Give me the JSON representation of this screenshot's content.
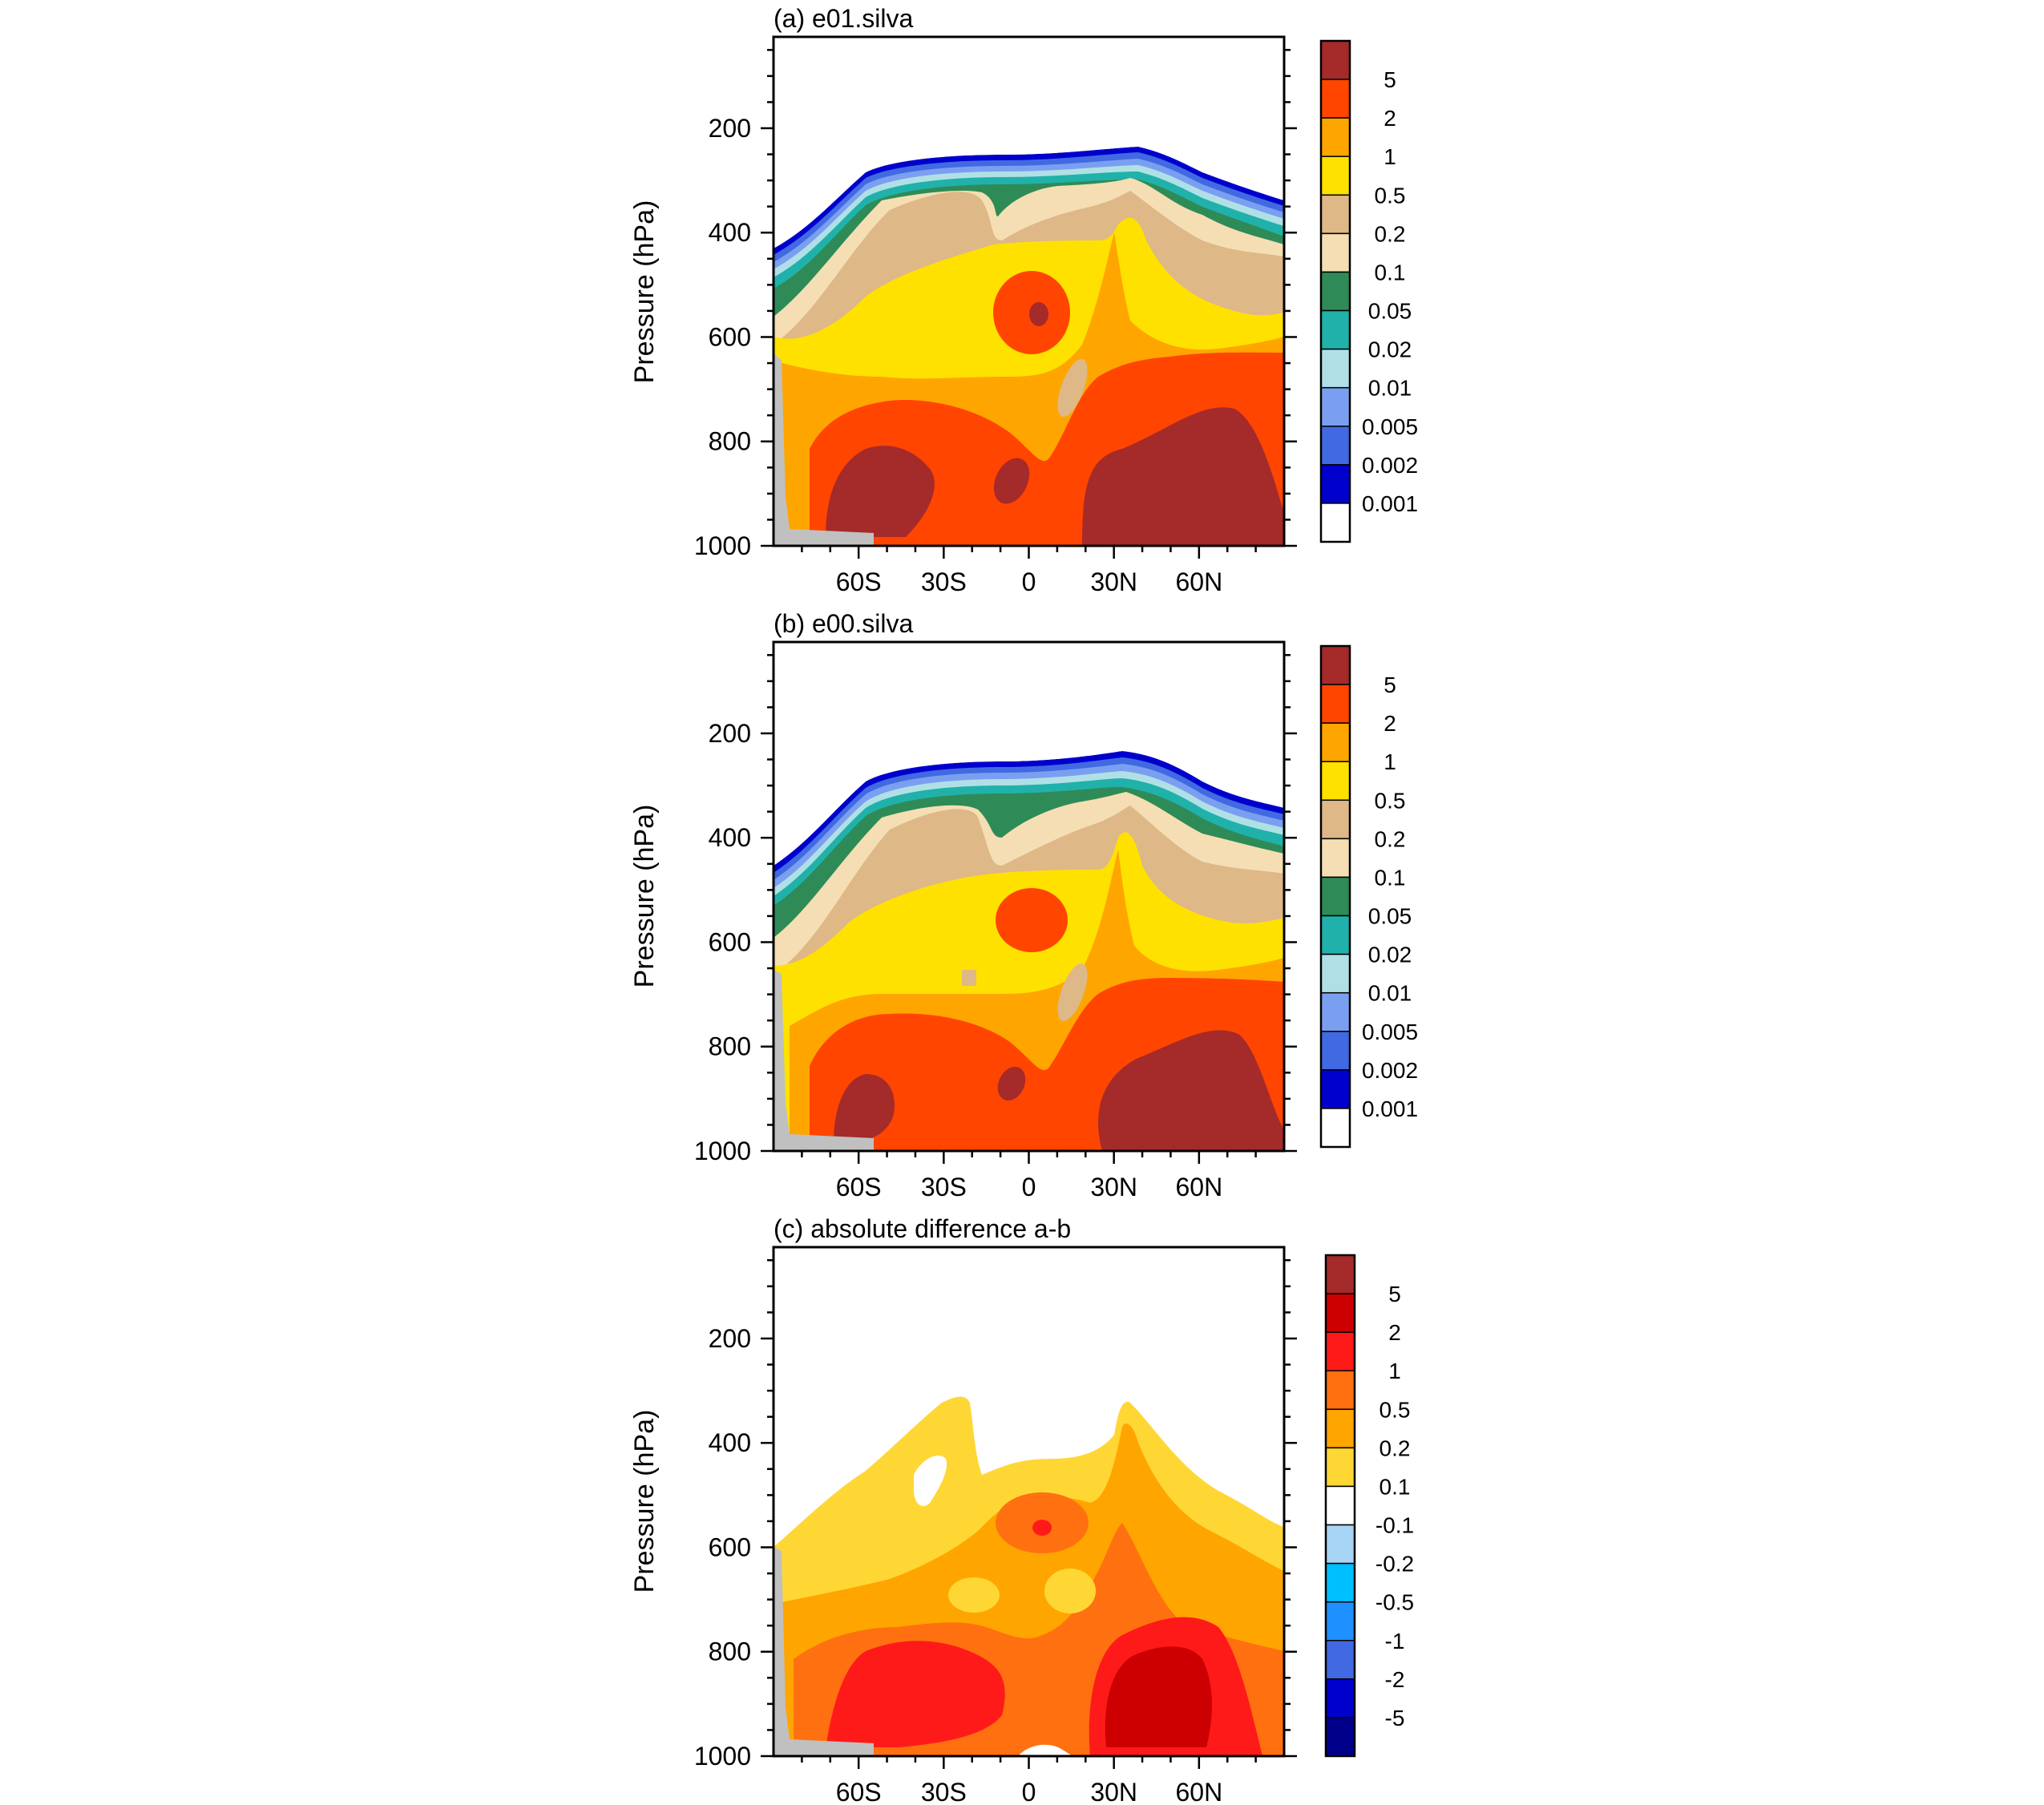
{
  "chart_data": [
    {
      "type": "heatmap",
      "title": "(a) e01.silva",
      "ylabel": "Pressure (hPa)",
      "x_tick_labels": [
        "60S",
        "30S",
        "0",
        "30N",
        "60N"
      ],
      "x_tick_values": [
        -60,
        -30,
        0,
        30,
        60
      ],
      "xlim": [
        -90,
        90
      ],
      "y_tick_labels": [
        "200",
        "400",
        "600",
        "800",
        "1000"
      ],
      "y_tick_values": [
        200,
        400,
        600,
        800,
        1000
      ],
      "ylim": [
        25,
        1000
      ],
      "colorbar_labels": [
        "5",
        "2",
        "1",
        "0.5",
        "0.2",
        "0.1",
        "0.05",
        "0.02",
        "0.01",
        "0.005",
        "0.002",
        "0.001"
      ],
      "colorbar_colors": [
        "#a52a2a",
        "#ff4500",
        "#ffa500",
        "#ffe100",
        "#deb887",
        "#f5deb3",
        "#2e8b57",
        "#20b2aa",
        "#b0e0e6",
        "#7b9ff0",
        "#4169e1",
        "#0000cd",
        "#ffffff"
      ],
      "sample_field": [
        {
          "lat": -30,
          "p": 330,
          "value": 0.2
        },
        {
          "lat": 0,
          "p": 560,
          "value": 5
        },
        {
          "lat": 20,
          "p": 650,
          "value": 0.2
        },
        {
          "lat": 50,
          "p": 850,
          "value": 5
        },
        {
          "lat": -50,
          "p": 900,
          "value": 5
        }
      ]
    },
    {
      "type": "heatmap",
      "title": "(b) e00.silva",
      "ylabel": "Pressure (hPa)",
      "x_tick_labels": [
        "60S",
        "30S",
        "0",
        "30N",
        "60N"
      ],
      "x_tick_values": [
        -60,
        -30,
        0,
        30,
        60
      ],
      "xlim": [
        -90,
        90
      ],
      "y_tick_labels": [
        "200",
        "400",
        "600",
        "800",
        "1000"
      ],
      "y_tick_values": [
        200,
        400,
        600,
        800,
        1000
      ],
      "ylim": [
        25,
        1000
      ],
      "colorbar_labels": [
        "5",
        "2",
        "1",
        "0.5",
        "0.2",
        "0.1",
        "0.05",
        "0.02",
        "0.01",
        "0.005",
        "0.002",
        "0.001"
      ],
      "colorbar_colors": [
        "#a52a2a",
        "#ff4500",
        "#ffa500",
        "#ffe100",
        "#deb887",
        "#f5deb3",
        "#2e8b57",
        "#20b2aa",
        "#b0e0e6",
        "#7b9ff0",
        "#4169e1",
        "#0000cd",
        "#ffffff"
      ],
      "sample_field": [
        {
          "lat": -30,
          "p": 330,
          "value": 0.2
        },
        {
          "lat": 0,
          "p": 560,
          "value": 2
        },
        {
          "lat": 20,
          "p": 650,
          "value": 0.2
        },
        {
          "lat": 50,
          "p": 850,
          "value": 5
        },
        {
          "lat": -50,
          "p": 900,
          "value": 5
        }
      ]
    },
    {
      "type": "heatmap",
      "title": "(c) absolute difference a-b",
      "ylabel": "Pressure (hPa)",
      "x_tick_labels": [
        "60S",
        "30S",
        "0",
        "30N",
        "60N"
      ],
      "x_tick_values": [
        -60,
        -30,
        0,
        30,
        60
      ],
      "xlim": [
        -90,
        90
      ],
      "y_tick_labels": [
        "200",
        "400",
        "600",
        "800",
        "1000"
      ],
      "y_tick_values": [
        200,
        400,
        600,
        800,
        1000
      ],
      "ylim": [
        25,
        1000
      ],
      "colorbar_labels": [
        "5",
        "2",
        "1",
        "0.5",
        "0.2",
        "0.1",
        "-0.1",
        "-0.2",
        "-0.5",
        "-1",
        "-2",
        "-5"
      ],
      "colorbar_colors": [
        "#a52a2a",
        "#cc0000",
        "#ff1a1a",
        "#ff7010",
        "#ffa500",
        "#ffd735",
        "#ffffff",
        "#a8d4f5",
        "#00bfff",
        "#1e90ff",
        "#4169e1",
        "#0000cd",
        "#00008b"
      ],
      "sample_field": [
        {
          "lat": -30,
          "p": 450,
          "value": 0.1
        },
        {
          "lat": 0,
          "p": 560,
          "value": 1
        },
        {
          "lat": 50,
          "p": 850,
          "value": 2
        },
        {
          "lat": -50,
          "p": 900,
          "value": 1
        }
      ]
    }
  ]
}
